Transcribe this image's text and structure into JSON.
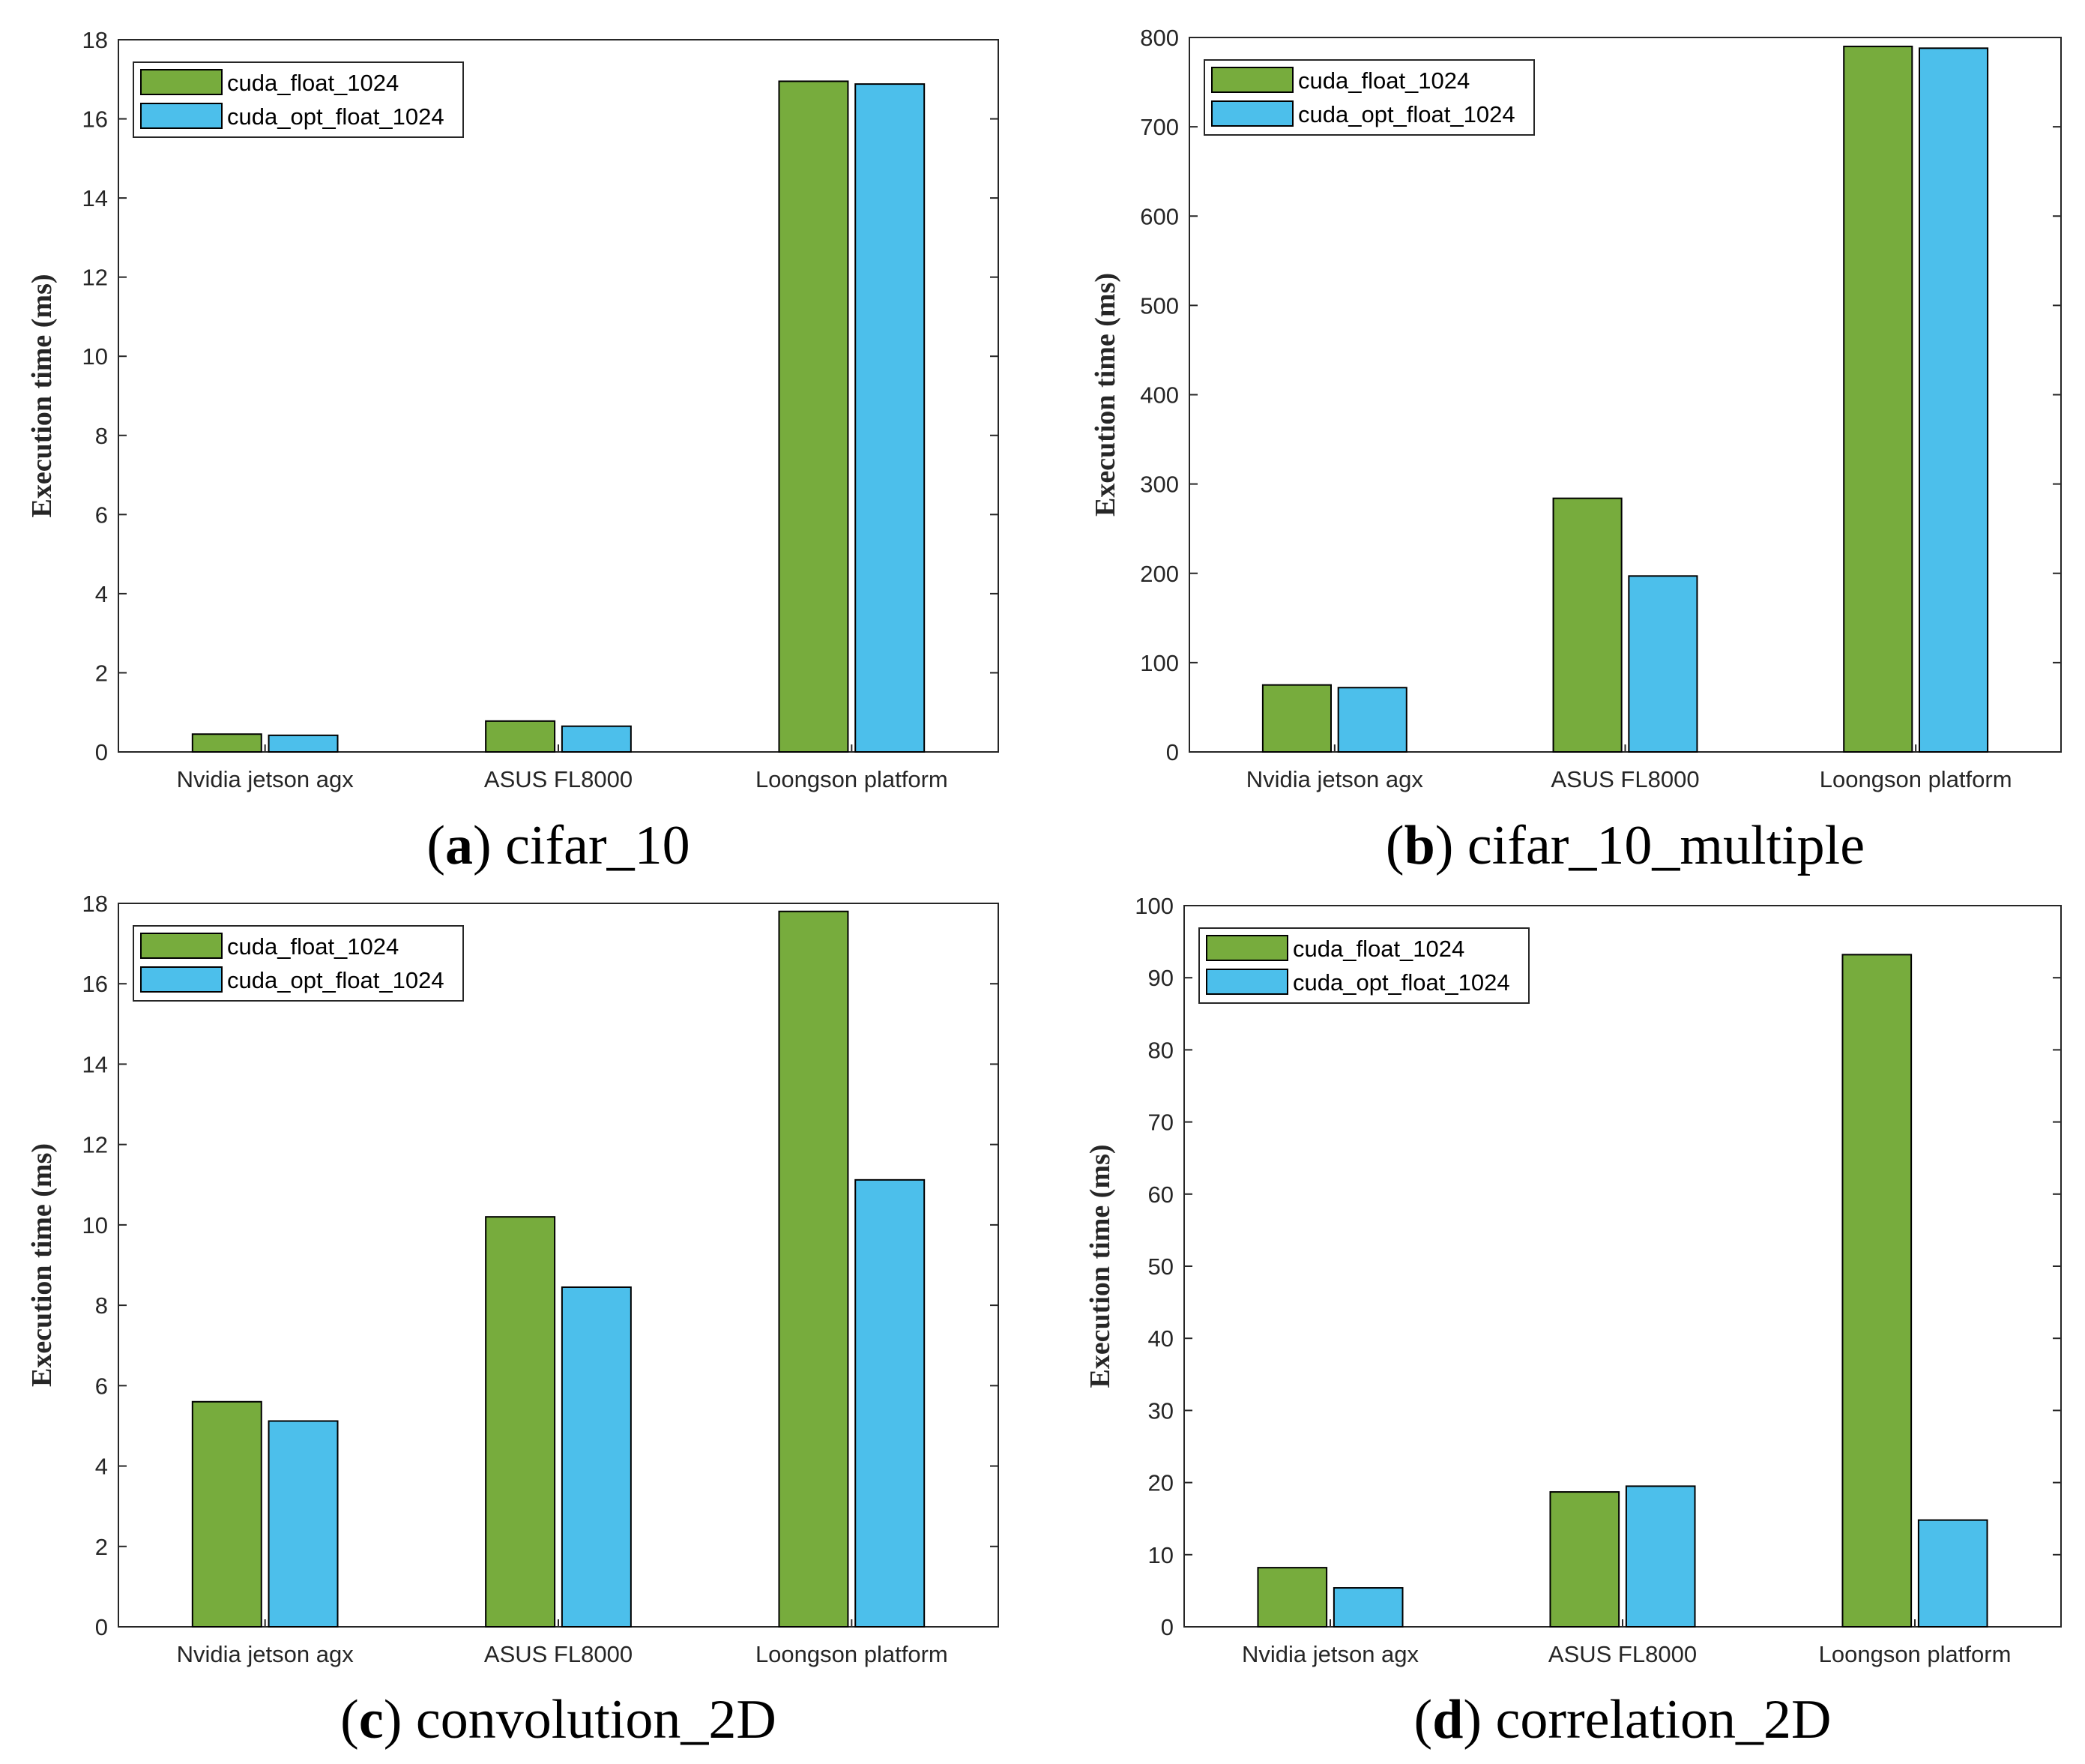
{
  "colors": {
    "series1": "#77AC3D",
    "series2": "#4CBFEB",
    "axis": "#262626"
  },
  "chart_data": [
    {
      "type": "bar",
      "caption_letter": "a",
      "caption_name": "cifar_10",
      "categories": [
        "Nvidia jetson agx",
        "ASUS FL8000",
        "Loongson platform"
      ],
      "series": [
        {
          "name": "cuda_float_1024",
          "values": [
            0.45,
            0.78,
            16.95
          ]
        },
        {
          "name": "cuda_opt_float_1024",
          "values": [
            0.42,
            0.65,
            16.88
          ]
        }
      ],
      "ylabel": "Execution time (ms)",
      "ylim": [
        0,
        18
      ],
      "yticks": [
        0,
        2,
        4,
        6,
        8,
        10,
        12,
        14,
        16,
        18
      ],
      "legend": "top-left"
    },
    {
      "type": "bar",
      "caption_letter": "b",
      "caption_name": "cifar_10_multiple",
      "categories": [
        "Nvidia jetson agx",
        "ASUS FL8000",
        "Loongson platform"
      ],
      "series": [
        {
          "name": "cuda_float_1024",
          "values": [
            75,
            284,
            790
          ]
        },
        {
          "name": "cuda_opt_float_1024",
          "values": [
            72,
            197,
            788
          ]
        }
      ],
      "ylabel": "Execution time (ms)",
      "ylim": [
        0,
        800
      ],
      "yticks": [
        0,
        100,
        200,
        300,
        400,
        500,
        600,
        700,
        800
      ],
      "legend": "top-left"
    },
    {
      "type": "bar",
      "caption_letter": "c",
      "caption_name": "convolution_2D",
      "categories": [
        "Nvidia jetson agx",
        "ASUS FL8000",
        "Loongson platform"
      ],
      "series": [
        {
          "name": "cuda_float_1024",
          "values": [
            5.6,
            10.2,
            17.8
          ]
        },
        {
          "name": "cuda_opt_float_1024",
          "values": [
            5.12,
            8.45,
            11.12
          ]
        }
      ],
      "ylabel": "Execution time (ms)",
      "ylim": [
        0,
        18
      ],
      "yticks": [
        0,
        2,
        4,
        6,
        8,
        10,
        12,
        14,
        16,
        18
      ],
      "legend": "top-left"
    },
    {
      "type": "bar",
      "caption_letter": "d",
      "caption_name": "correlation_2D",
      "categories": [
        "Nvidia jetson agx",
        "ASUS FL8000",
        "Loongson platform"
      ],
      "series": [
        {
          "name": "cuda_float_1024",
          "values": [
            8.2,
            18.7,
            93.2
          ]
        },
        {
          "name": "cuda_opt_float_1024",
          "values": [
            5.4,
            19.5,
            14.8
          ]
        }
      ],
      "ylabel": "Execution time (ms)",
      "ylim": [
        0,
        100
      ],
      "yticks": [
        0,
        10,
        20,
        30,
        40,
        50,
        60,
        70,
        80,
        90,
        100
      ],
      "legend": "top-left"
    }
  ]
}
